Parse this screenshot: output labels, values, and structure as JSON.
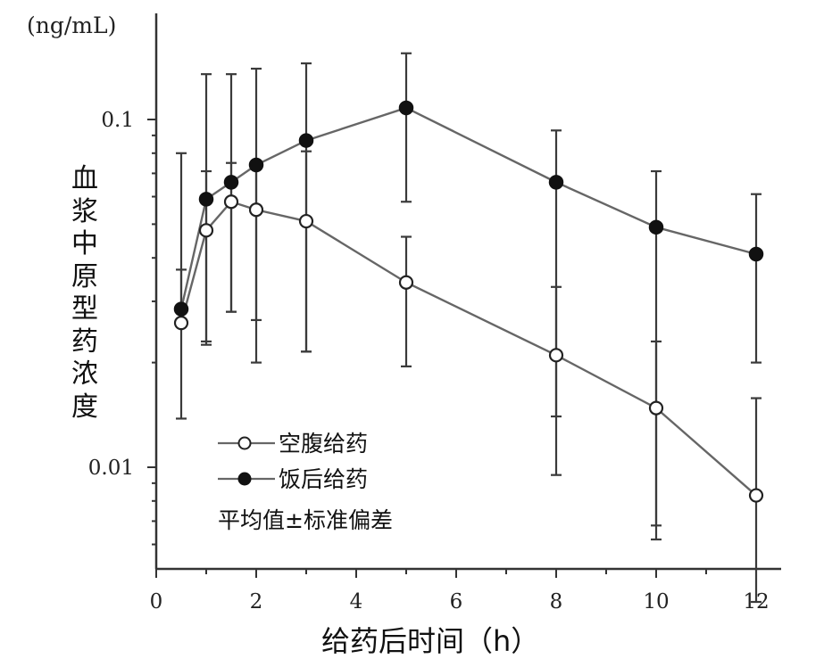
{
  "chart_data": {
    "type": "line",
    "yscale": "log",
    "yunit": "(ng/mL)",
    "ylabel": "血浆中原型药浓度",
    "xlabel": "给药后时间（h）",
    "xlim": [
      0,
      12.5
    ],
    "ylim": [
      0.0051,
      0.16
    ],
    "xticks": [
      0,
      2,
      4,
      6,
      8,
      10,
      12
    ],
    "yticks": [
      0.01,
      0.1
    ],
    "ytick_labels": [
      "0.01",
      "0.1"
    ],
    "legend_note": "平均值±标准偏差",
    "series": [
      {
        "name": "空腹给药",
        "marker": "open-circle",
        "x": [
          0.5,
          1,
          1.5,
          2,
          3,
          5,
          8,
          10,
          12
        ],
        "y": [
          0.026,
          0.048,
          0.058,
          0.055,
          0.051,
          0.034,
          0.021,
          0.0148,
          0.0083
        ],
        "err_low": [
          0.0138,
          0.0225,
          0.028,
          0.02,
          0.0215,
          0.0195,
          0.014,
          0.0068,
          0.0041
        ],
        "err_high": [
          0.037,
          0.071,
          0.075,
          0.074,
          0.081,
          0.046,
          0.033,
          0.023,
          0.0158
        ]
      },
      {
        "name": "饭后给药",
        "marker": "filled-circle",
        "x": [
          0.5,
          1,
          1.5,
          2,
          3,
          5,
          8,
          10,
          12
        ],
        "y": [
          0.0285,
          0.059,
          0.066,
          0.074,
          0.087,
          0.108,
          0.066,
          0.049,
          0.041
        ],
        "err_low": [
          0.0285,
          0.023,
          0.028,
          0.0265,
          0.0215,
          0.058,
          0.0095,
          0.0062,
          0.02
        ],
        "err_high": [
          0.08,
          0.135,
          0.135,
          0.14,
          0.145,
          0.155,
          0.093,
          0.071,
          0.061
        ]
      }
    ]
  }
}
